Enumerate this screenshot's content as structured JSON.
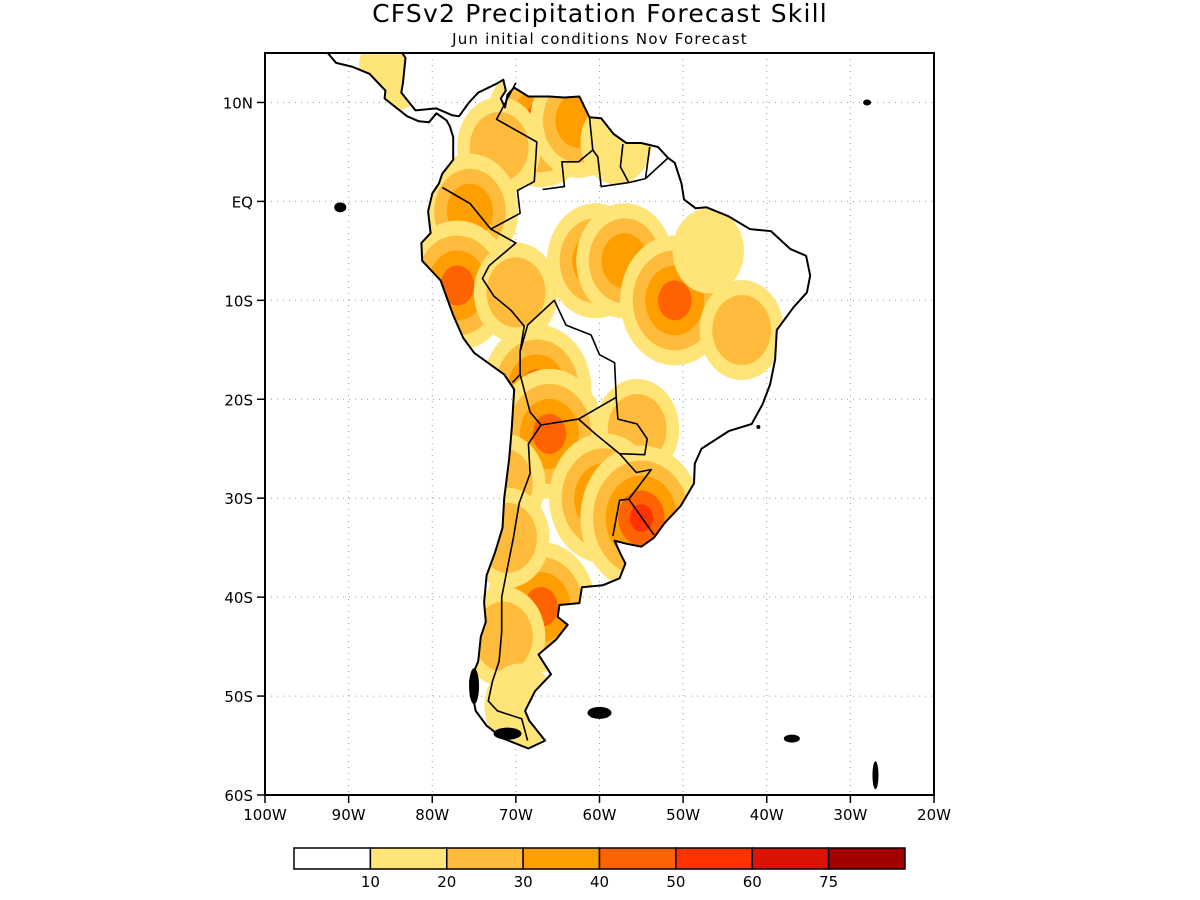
{
  "title": "CFSv2 Precipitation Forecast Skill",
  "subtitle": "Jun initial conditions  Nov Forecast",
  "map": {
    "region": "South America",
    "lon_range": [
      -100,
      -20
    ],
    "lat_range": [
      -60,
      15
    ],
    "lat_labels": [
      "10N",
      "EQ",
      "10S",
      "20S",
      "30S",
      "40S",
      "50S",
      "60S"
    ],
    "lat_values": [
      10,
      0,
      -10,
      -20,
      -30,
      -40,
      -50,
      -60
    ],
    "lon_labels": [
      "100W",
      "90W",
      "80W",
      "70W",
      "60W",
      "50W",
      "40W",
      "30W",
      "20W"
    ],
    "lon_values": [
      -100,
      -90,
      -80,
      -70,
      -60,
      -50,
      -40,
      -30,
      -20
    ]
  },
  "colorbar": {
    "bins": [
      {
        "color": "#ffffff"
      },
      {
        "color": "#ffe478"
      },
      {
        "color": "#ffbb3c"
      },
      {
        "color": "#ff9e00"
      },
      {
        "color": "#ff6200"
      },
      {
        "color": "#ff3200"
      },
      {
        "color": "#dd1200"
      },
      {
        "color": "#a30000"
      }
    ],
    "tick_labels": [
      "10",
      "20",
      "30",
      "40",
      "50",
      "60",
      "75"
    ]
  },
  "skill_regions": [
    {
      "lon": -67,
      "lat": 8.0,
      "level": 4
    },
    {
      "lon": -62.5,
      "lat": 8.2,
      "level": 3
    },
    {
      "lon": -72,
      "lat": 5.5,
      "level": 2
    },
    {
      "lon": -58,
      "lat": 6.0,
      "level": 1
    },
    {
      "lon": -75.5,
      "lat": -1.0,
      "level": 3
    },
    {
      "lon": -77,
      "lat": -8.5,
      "level": 4
    },
    {
      "lon": -70,
      "lat": -9.2,
      "level": 2
    },
    {
      "lon": -60.5,
      "lat": -6.0,
      "level": 3
    },
    {
      "lon": -57,
      "lat": -6.0,
      "level": 3
    },
    {
      "lon": -51,
      "lat": -10.0,
      "level": 4
    },
    {
      "lon": -47,
      "lat": -5.0,
      "level": 1
    },
    {
      "lon": -43,
      "lat": -13.0,
      "level": 2
    },
    {
      "lon": -67.5,
      "lat": -19.0,
      "level": 4
    },
    {
      "lon": -66.0,
      "lat": -23.5,
      "level": 4
    },
    {
      "lon": -55.5,
      "lat": -23.0,
      "level": 2
    },
    {
      "lon": -59.5,
      "lat": -30.0,
      "level": 4
    },
    {
      "lon": -55.0,
      "lat": -32.0,
      "level": 5
    },
    {
      "lon": -71.5,
      "lat": -28.5,
      "level": 2
    },
    {
      "lon": -67.0,
      "lat": -41.0,
      "level": 4
    },
    {
      "lon": -71.0,
      "lat": -34.0,
      "level": 2
    },
    {
      "lon": -71.5,
      "lat": -44.0,
      "level": 2
    },
    {
      "lon": -69.5,
      "lat": -51.0,
      "level": 1
    },
    {
      "lon": -84.5,
      "lat": 13.5,
      "level": 1
    }
  ]
}
